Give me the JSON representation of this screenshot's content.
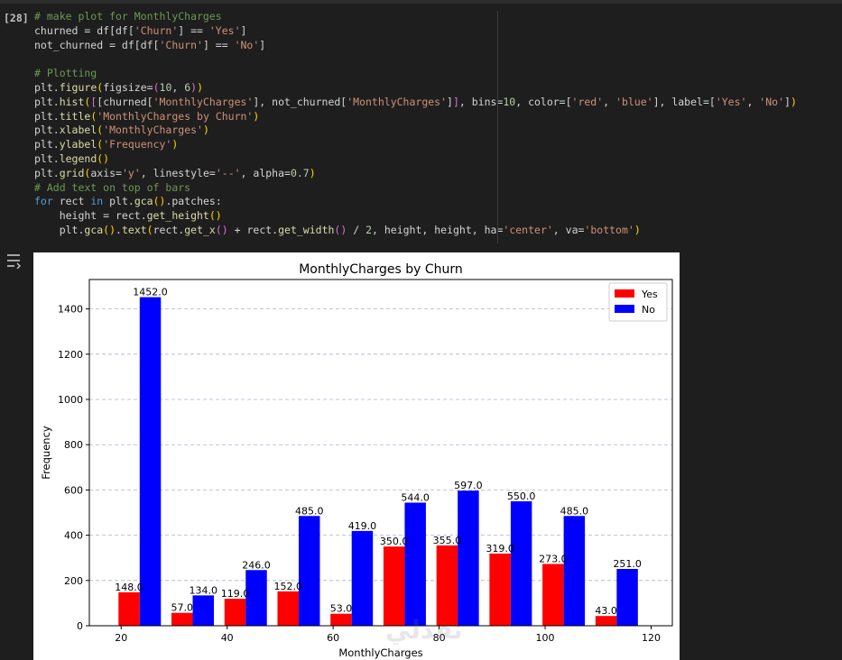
{
  "cell": {
    "execution_count": "[28]",
    "code_lines": [
      [
        [
          "comment",
          "# make plot for MonthlyCharges"
        ]
      ],
      [
        [
          "plain",
          "churned = df[df["
        ],
        [
          "string",
          "'Churn'"
        ],
        [
          "plain",
          "] == "
        ],
        [
          "string",
          "'Yes'"
        ],
        [
          "plain",
          "]"
        ]
      ],
      [
        [
          "plain",
          "not_churned = df[df["
        ],
        [
          "string",
          "'Churn'"
        ],
        [
          "plain",
          "] == "
        ],
        [
          "string",
          "'No'"
        ],
        [
          "plain",
          "]"
        ]
      ],
      [
        [
          "plain",
          ""
        ]
      ],
      [
        [
          "comment",
          "# Plotting"
        ]
      ],
      [
        [
          "plain",
          "plt."
        ],
        [
          "func",
          "figure"
        ],
        [
          "paren1",
          "("
        ],
        [
          "plain",
          "figsize="
        ],
        [
          "paren2",
          "("
        ],
        [
          "number",
          "10"
        ],
        [
          "plain",
          ", "
        ],
        [
          "number",
          "6"
        ],
        [
          "paren2",
          ")"
        ],
        [
          "paren1",
          ")"
        ]
      ],
      [
        [
          "plain",
          "plt."
        ],
        [
          "func",
          "hist"
        ],
        [
          "paren1",
          "("
        ],
        [
          "paren2",
          "["
        ],
        [
          "plain",
          "[churned["
        ],
        [
          "string",
          "'MonthlyCharges'"
        ],
        [
          "plain",
          "], not_churned["
        ],
        [
          "string",
          "'MonthlyCharges'"
        ],
        [
          "plain",
          "]"
        ],
        [
          "paren2",
          "]"
        ],
        [
          "plain",
          ", bins="
        ],
        [
          "number",
          "10"
        ],
        [
          "plain",
          ", color=["
        ],
        [
          "string",
          "'red'"
        ],
        [
          "plain",
          ", "
        ],
        [
          "string",
          "'blue'"
        ],
        [
          "plain",
          "], label=["
        ],
        [
          "string",
          "'Yes'"
        ],
        [
          "plain",
          ", "
        ],
        [
          "string",
          "'No'"
        ],
        [
          "plain",
          "]"
        ],
        [
          "paren1",
          ")"
        ]
      ],
      [
        [
          "plain",
          "plt."
        ],
        [
          "func",
          "title"
        ],
        [
          "paren1",
          "("
        ],
        [
          "string",
          "'MonthlyCharges by Churn'"
        ],
        [
          "paren1",
          ")"
        ]
      ],
      [
        [
          "plain",
          "plt."
        ],
        [
          "func",
          "xlabel"
        ],
        [
          "paren1",
          "("
        ],
        [
          "string",
          "'MonthlyCharges'"
        ],
        [
          "paren1",
          ")"
        ]
      ],
      [
        [
          "plain",
          "plt."
        ],
        [
          "func",
          "ylabel"
        ],
        [
          "paren1",
          "("
        ],
        [
          "string",
          "'Frequency'"
        ],
        [
          "paren1",
          ")"
        ]
      ],
      [
        [
          "plain",
          "plt."
        ],
        [
          "func",
          "legend"
        ],
        [
          "paren1",
          "()"
        ]
      ],
      [
        [
          "plain",
          "plt."
        ],
        [
          "func",
          "grid"
        ],
        [
          "paren1",
          "("
        ],
        [
          "plain",
          "axis="
        ],
        [
          "string",
          "'y'"
        ],
        [
          "plain",
          ", linestyle="
        ],
        [
          "string",
          "'--'"
        ],
        [
          "plain",
          ", alpha="
        ],
        [
          "number",
          "0.7"
        ],
        [
          "paren1",
          ")"
        ]
      ],
      [
        [
          "comment",
          "# Add text on top of bars"
        ]
      ],
      [
        [
          "keyword",
          "for"
        ],
        [
          "plain",
          " rect "
        ],
        [
          "keyword",
          "in"
        ],
        [
          "plain",
          " plt."
        ],
        [
          "func",
          "gca"
        ],
        [
          "paren1",
          "()"
        ],
        [
          "plain",
          ".patches:"
        ]
      ],
      [
        [
          "plain",
          "    height = rect."
        ],
        [
          "func",
          "get_height"
        ],
        [
          "paren1",
          "()"
        ]
      ],
      [
        [
          "plain",
          "    plt."
        ],
        [
          "func",
          "gca"
        ],
        [
          "paren1",
          "()"
        ],
        [
          "plain",
          "."
        ],
        [
          "func",
          "text"
        ],
        [
          "paren1",
          "("
        ],
        [
          "plain",
          "rect."
        ],
        [
          "func",
          "get_x"
        ],
        [
          "paren2",
          "()"
        ],
        [
          "plain",
          " + rect."
        ],
        [
          "func",
          "get_width"
        ],
        [
          "paren2",
          "()"
        ],
        [
          "plain",
          " / "
        ],
        [
          "number",
          "2"
        ],
        [
          "plain",
          ", height, height, ha="
        ],
        [
          "string",
          "'center'"
        ],
        [
          "plain",
          ", va="
        ],
        [
          "string",
          "'bottom'"
        ],
        [
          "paren1",
          ")"
        ]
      ]
    ]
  },
  "output": {
    "icon": "output-toggle-icon",
    "watermark": "نفذلي"
  },
  "chart_data": {
    "type": "bar",
    "title": "MonthlyCharges by Churn",
    "xlabel": "MonthlyCharges",
    "ylabel": "Frequency",
    "xlim": [
      14,
      124
    ],
    "ylim": [
      0,
      1530
    ],
    "xticks": [
      20,
      40,
      60,
      80,
      100,
      120
    ],
    "yticks": [
      0,
      200,
      400,
      600,
      800,
      1000,
      1200,
      1400
    ],
    "grid": "y dashed",
    "legend_position": "top-right",
    "bin_centers": [
      23.5,
      33.5,
      43.5,
      53.5,
      63.5,
      73.5,
      83.5,
      93.5,
      103.5,
      113.5
    ],
    "series": [
      {
        "name": "Yes",
        "color": "#ff0000",
        "values": [
          148,
          57,
          119,
          152,
          53,
          350,
          355,
          319,
          273,
          43
        ]
      },
      {
        "name": "No",
        "color": "#0000ff",
        "values": [
          1452,
          134,
          246,
          485,
          419,
          544,
          597,
          550,
          485,
          251
        ]
      }
    ],
    "bar_labels": {
      "Yes": [
        "148.0",
        "57.0",
        "119.0",
        "152.0",
        "53.0",
        "350.0",
        "355.0",
        "319.0",
        "273.0",
        "43.0"
      ],
      "No": [
        "1452.0",
        "134.0",
        "246.0",
        "485.0",
        "419.0",
        "544.0",
        "597.0",
        "550.0",
        "485.0",
        "251.0"
      ]
    }
  }
}
